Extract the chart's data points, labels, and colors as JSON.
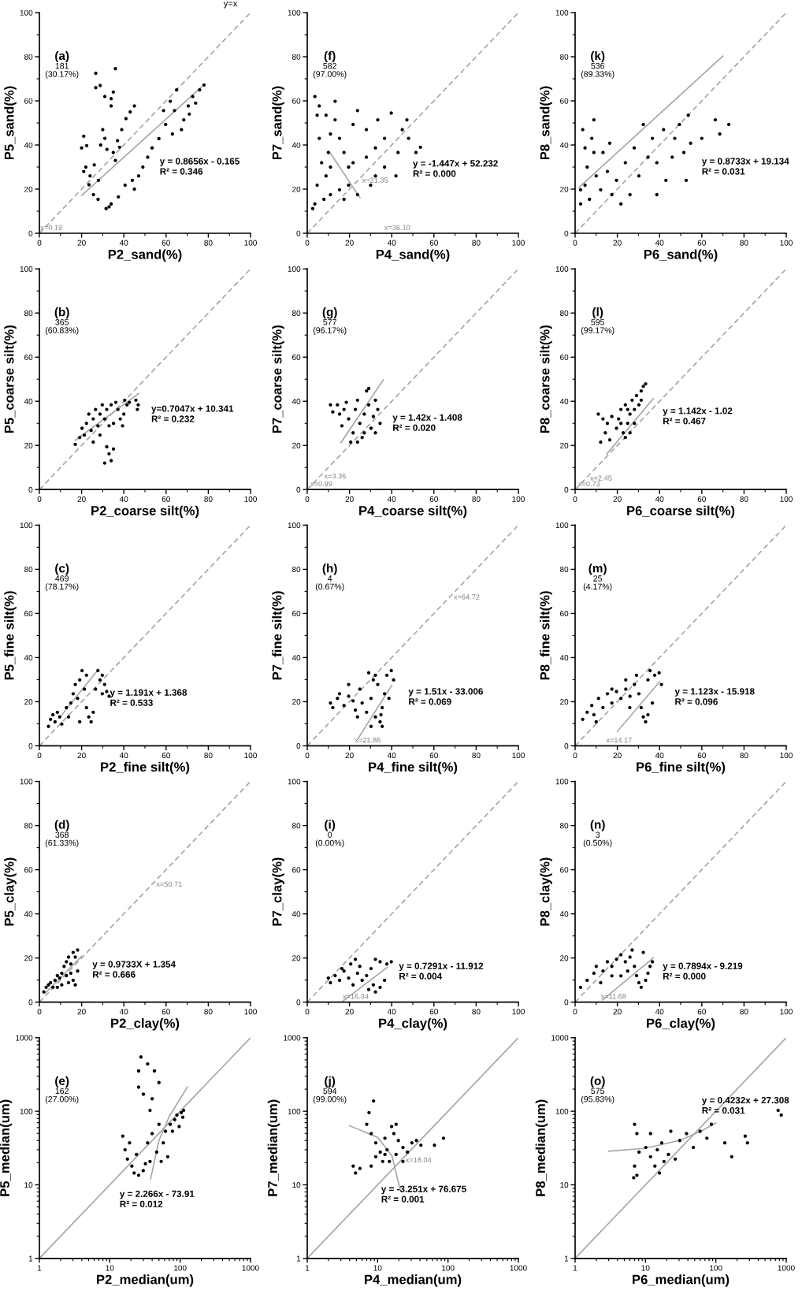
{
  "chart_data": [
    {
      "type": "scatter",
      "xlabel": "P2_sand(%)",
      "ylabel": "P5_sand(%)",
      "xlim": [
        0,
        100
      ],
      "ylim": [
        0,
        100
      ],
      "xticks": [
        0,
        20,
        40,
        60,
        80,
        100
      ],
      "yticks": [
        0,
        20,
        40,
        60,
        80,
        100
      ],
      "series": [
        {
          "color": "#000000",
          "marker": "circle",
          "x": [
            20,
            21,
            21,
            22.4,
            23.5,
            22,
            24,
            25.6,
            27.8,
            26,
            28,
            30,
            31,
            29,
            32,
            26.7,
            28.8,
            26.7,
            31,
            34,
            35,
            36,
            34,
            35,
            37,
            39,
            41,
            43,
            45,
            38,
            36,
            31.6,
            34,
            37.4,
            33,
            40.6,
            44,
            47,
            49,
            51.3,
            53.4,
            45,
            56.6,
            59.8,
            64,
            65,
            68.4,
            70.5,
            72.6,
            75.9,
            78,
            67.3,
            63,
            58.8,
            62,
            74,
            71
          ],
          "values": [
            38.7,
            44,
            28,
            39.7,
            22,
            30,
            26,
            17.5,
            15.4,
            31,
            24,
            47,
            43,
            40,
            38,
            72.5,
            67,
            66,
            62,
            61,
            64,
            74.6,
            57.7,
            36.6,
            42,
            47,
            52,
            55,
            57.7,
            39,
            33,
            11.2,
            13.3,
            16.5,
            12,
            21.8,
            24,
            26,
            30,
            34.5,
            38.7,
            20,
            42.9,
            49.3,
            55.6,
            65,
            51.4,
            57.7,
            62,
            65,
            67.2,
            47,
            45,
            55.6,
            59.8,
            59,
            54
          ]
        },
        {
          "type": "line",
          "color": "#a6a6a6",
          "line_style": "solid",
          "x": [
            20,
            78
          ],
          "values": [
            17.1,
            67.4
          ]
        },
        {
          "type": "line",
          "name": "y=x",
          "color": "#a6a6a6",
          "line_style": "dashed",
          "x": [
            0,
            100
          ],
          "values": [
            0,
            100
          ]
        }
      ],
      "annotations": [
        "(a)",
        "181",
        "(30.17%)",
        "y = 0.8656x - 0.165\nR² = 0.346",
        "x=0.19"
      ]
    },
    {
      "type": "scatter",
      "xlabel": "P4_sand(%)",
      "ylabel": "P7_sand(%)",
      "xlim": [
        0,
        100
      ],
      "ylim": [
        0,
        100
      ],
      "xticks": [
        0,
        20,
        40,
        60,
        80,
        100
      ],
      "yticks": [
        0,
        20,
        40,
        60,
        80,
        100
      ],
      "series": [
        {
          "color": "#000000",
          "marker": "circle",
          "x": [
            3.6,
            4.7,
            5.7,
            6.8,
            4.7,
            3.6,
            7.9,
            8.9,
            10,
            11,
            2.6,
            11,
            13.2,
            15.3,
            17.4,
            19.6,
            15.3,
            17.4,
            23.8,
            28,
            32.3,
            36.6,
            39.8,
            45,
            48,
            51.5,
            53.6,
            42,
            32.3,
            21.7,
            23.8,
            30,
            11,
            5.7,
            8.9,
            13.2,
            21.7,
            43,
            36.6,
            28,
            19.6,
            33.4,
            47.2
          ],
          "values": [
            62,
            53.5,
            43,
            32,
            21.8,
            13.3,
            15.4,
            26,
            36.6,
            45,
            11.2,
            17.5,
            51.4,
            43,
            36.6,
            30,
            19.7,
            15.4,
            55.6,
            47,
            38.7,
            30,
            54.5,
            47,
            43,
            36.6,
            39,
            26,
            26,
            32,
            17.5,
            21.8,
            30,
            57.7,
            53.5,
            59.8,
            49.3,
            36.6,
            43,
            34.5,
            21.8,
            51.4,
            51.4
          ]
        },
        {
          "type": "line",
          "color": "#a6a6a6",
          "line_style": "solid",
          "x": [
            11,
            25
          ],
          "values": [
            36.3,
            16.1
          ]
        },
        {
          "type": "line",
          "color": "#a6a6a6",
          "line_style": "dashed",
          "x": [
            0,
            100
          ],
          "values": [
            0,
            100
          ]
        }
      ],
      "annotations": [
        "(f)",
        "582",
        "(97.00%)",
        "y = -1.447x + 52.232\nR² = 0.000",
        "x=36.10",
        {
          "text": "x=21.35",
          "x": 21.35,
          "y": 21.35
        }
      ]
    },
    {
      "type": "scatter",
      "xlabel": "P6_sand(%)",
      "ylabel": "P8_sand(%)",
      "xlim": [
        0,
        100
      ],
      "ylim": [
        0,
        100
      ],
      "xticks": [
        0,
        20,
        40,
        60,
        80,
        100
      ],
      "yticks": [
        0,
        20,
        40,
        60,
        80,
        100
      ],
      "series": [
        {
          "color": "#000000",
          "marker": "circle",
          "x": [
            2.6,
            3.6,
            4.7,
            5.7,
            4.7,
            6.8,
            8.9,
            8.9,
            10,
            12.1,
            15.3,
            17.4,
            19.6,
            23.8,
            28,
            30.2,
            32.3,
            36.6,
            38.7,
            41.9,
            47.2,
            49.4,
            51.5,
            53.6,
            54.7,
            60,
            66.4,
            72.8,
            52.6,
            43,
            21.7,
            26,
            34.5,
            46,
            2.6,
            7.9,
            13.2,
            16.4,
            38.7,
            68.5
          ],
          "values": [
            13.3,
            47,
            38.7,
            30,
            21.8,
            15.4,
            51.4,
            36.6,
            26,
            19.7,
            28,
            17.5,
            24,
            32,
            38.7,
            26,
            49.3,
            43,
            32,
            47,
            43,
            49.3,
            36.6,
            53.5,
            40.8,
            43,
            51.4,
            49.3,
            24,
            24,
            13.3,
            17.5,
            34.5,
            34.5,
            19.7,
            43,
            36.6,
            40.8,
            17.5,
            45
          ]
        },
        {
          "type": "line",
          "color": "#a6a6a6",
          "line_style": "solid",
          "x": [
            2,
            70
          ],
          "values": [
            20.9,
            80.3
          ]
        },
        {
          "type": "line",
          "color": "#a6a6a6",
          "line_style": "dashed",
          "x": [
            0,
            100
          ],
          "values": [
            0,
            100
          ]
        }
      ],
      "annotations": [
        "(k)",
        "536",
        "(89.33%)",
        "y = 0.8733x + 19.134\nR² = 0.031"
      ]
    },
    {
      "type": "scatter",
      "xlabel": "P2_coarse silt(%)",
      "ylabel": "P5_coarse silt(%)",
      "xlim": [
        0,
        100
      ],
      "ylim": [
        0,
        100
      ],
      "xticks": [
        0,
        20,
        40,
        60,
        80,
        100
      ],
      "yticks": [
        0,
        20,
        40,
        60,
        80,
        100
      ],
      "series": [
        {
          "color": "#000000",
          "marker": "circle",
          "x": [
            17,
            19.1,
            20.2,
            22.3,
            23.4,
            25.5,
            26.6,
            28.7,
            29.8,
            31.9,
            34,
            36.2,
            37.2,
            38.3,
            35.1,
            33,
            30.9,
            27.7,
            24.5,
            21.3,
            28.7,
            25.5,
            31.9,
            33,
            34,
            30.9,
            35.1,
            40.4,
            41.5,
            40,
            39.4,
            45.7,
            46.8,
            46.4,
            42.6
          ],
          "values": [
            20.5,
            23.6,
            27.8,
            30,
            34.2,
            32,
            36.3,
            34.2,
            38.4,
            36.3,
            38.4,
            39.5,
            36.3,
            32,
            30,
            28.9,
            32,
            28.9,
            26.8,
            24.7,
            24.7,
            21.5,
            19.4,
            16.2,
            13.1,
            12,
            18.4,
            40.5,
            38.4,
            34.2,
            28.9,
            40.5,
            38.4,
            36.3,
            39.5
          ]
        },
        {
          "type": "line",
          "color": "#a6a6a6",
          "line_style": "solid",
          "x": [
            17,
            47
          ],
          "values": [
            22.3,
            43.5
          ]
        },
        {
          "type": "line",
          "color": "#a6a6a6",
          "line_style": "dashed",
          "x": [
            0,
            100
          ],
          "values": [
            0,
            100
          ]
        }
      ],
      "annotations": [
        "(b)",
        "365",
        "(60.83%)",
        "y=0.7047x + 10.341\nR² = 0.232"
      ]
    },
    {
      "type": "scatter",
      "xlabel": "P4_coarse silt(%)",
      "ylabel": "P7_coarse silt(%)",
      "xlim": [
        0,
        100
      ],
      "ylim": [
        0,
        100
      ],
      "xticks": [
        0,
        20,
        40,
        60,
        80,
        100
      ],
      "yticks": [
        0,
        20,
        40,
        60,
        80,
        100
      ],
      "series": [
        {
          "color": "#000000",
          "marker": "circle",
          "x": [
            14.3,
            15.3,
            16.4,
            18.5,
            19.6,
            21.7,
            22.8,
            23.8,
            24.9,
            26,
            27,
            28.1,
            29.1,
            30.2,
            31.3,
            32.3,
            33.4,
            34.5,
            20.6,
            17.4,
            11,
            12.1,
            23.8,
            27,
            29.1,
            32.3
          ],
          "values": [
            38.4,
            34.2,
            28.9,
            39.5,
            32,
            25.7,
            36.3,
            40.5,
            30,
            23.6,
            34.2,
            44.7,
            38.4,
            27.8,
            33.1,
            40.5,
            36.3,
            30,
            21.5,
            36.3,
            38.4,
            35.2,
            21.5,
            25.7,
            45.8,
            25.7
          ]
        },
        {
          "type": "line",
          "color": "#a6a6a6",
          "line_style": "solid",
          "x": [
            16,
            36
          ],
          "values": [
            21.3,
            49.7
          ]
        },
        {
          "type": "line",
          "color": "#a6a6a6",
          "line_style": "dashed",
          "x": [
            0,
            100
          ],
          "values": [
            0,
            100
          ]
        }
      ],
      "annotations": [
        "(g)",
        "577",
        "(96.17%)",
        "y = 1.42x - 1.408\nR² = 0.020",
        "x=0.99",
        {
          "text": "x=3.36",
          "x": 3.36,
          "y": 3.36
        }
      ]
    },
    {
      "type": "scatter",
      "xlabel": "P6_coarse silt(%)",
      "ylabel": "P8_coarse silt(%)",
      "xlim": [
        0,
        100
      ],
      "ylim": [
        0,
        100
      ],
      "xticks": [
        0,
        20,
        40,
        60,
        80,
        100
      ],
      "yticks": [
        0,
        20,
        40,
        60,
        80,
        100
      ],
      "series": [
        {
          "color": "#000000",
          "marker": "circle",
          "x": [
            12.1,
            14.3,
            15.3,
            17.4,
            19.6,
            20.6,
            21.7,
            22.8,
            23.8,
            24.9,
            26,
            27,
            28.1,
            29.1,
            30.2,
            31.3,
            32.3,
            33.4,
            31.3,
            23.8,
            21.7,
            16.4,
            13.2,
            11,
            26,
            28.1,
            24.9
          ],
          "values": [
            21.5,
            25.7,
            30,
            33.1,
            27.8,
            32,
            36.3,
            25.7,
            38.4,
            30,
            34.2,
            40.5,
            36.3,
            42.6,
            38.4,
            44.7,
            46.8,
            47.9,
            40.5,
            23.6,
            30,
            22.5,
            32,
            34.2,
            25.7,
            30,
            36.3
          ]
        },
        {
          "type": "line",
          "color": "#a6a6a6",
          "line_style": "solid",
          "x": [
            15,
            37
          ],
          "values": [
            16.1,
            41.2
          ]
        },
        {
          "type": "line",
          "color": "#a6a6a6",
          "line_style": "dashed",
          "x": [
            0,
            100
          ],
          "values": [
            0,
            100
          ]
        }
      ],
      "annotations": [
        "(l)",
        "595",
        "(99.17%)",
        "y = 1.142x - 1.02\nR² = 0.467",
        "x=0.73",
        {
          "text": "x=2.45",
          "x": 2.45,
          "y": 2.45
        }
      ]
    },
    {
      "type": "scatter",
      "xlabel": "P2_fine silt(%)",
      "ylabel": "P5_fine silt(%)",
      "xlim": [
        0,
        100
      ],
      "ylim": [
        0,
        100
      ],
      "xticks": [
        0,
        20,
        40,
        60,
        80,
        100
      ],
      "yticks": [
        0,
        20,
        40,
        60,
        80,
        100
      ],
      "series": [
        {
          "color": "#000000",
          "marker": "circle",
          "x": [
            4.3,
            5.3,
            6.4,
            7.4,
            8.5,
            9.6,
            10.6,
            12.8,
            13.8,
            14.9,
            16,
            17,
            18.1,
            19.1,
            20.2,
            21.3,
            22.3,
            23.4,
            24.5,
            19.1,
            25.5,
            22.3,
            27.7,
            28.7,
            29.8,
            30.9,
            31.9,
            33,
            29.8,
            26.6
          ],
          "values": [
            8.8,
            12,
            14.1,
            10.9,
            15.2,
            13.1,
            9.9,
            17.3,
            13.1,
            19.4,
            23.6,
            27.8,
            21.5,
            29.9,
            34.1,
            25.7,
            17.3,
            13.1,
            10.9,
            10.9,
            15.2,
            32,
            34.1,
            29.9,
            32,
            27.8,
            24.6,
            22.5,
            23.6,
            25.7
          ]
        },
        {
          "type": "line",
          "color": "#a6a6a6",
          "line_style": "solid",
          "x": [
            10,
            28
          ],
          "values": [
            13.3,
            34.7
          ]
        },
        {
          "type": "line",
          "color": "#a6a6a6",
          "line_style": "dashed",
          "x": [
            0,
            100
          ],
          "values": [
            0,
            100
          ]
        }
      ],
      "annotations": [
        "(c)",
        "469",
        "(78.17%)",
        "y = 1.191x + 1.368\nR² = 0.533"
      ]
    },
    {
      "type": "scatter",
      "xlabel": "P4_fine silt(%)",
      "ylabel": "P7_fine silt(%)",
      "xlim": [
        0,
        100
      ],
      "ylim": [
        0,
        100
      ],
      "xticks": [
        0,
        20,
        40,
        60,
        80,
        100
      ],
      "yticks": [
        0,
        20,
        40,
        60,
        80,
        100
      ],
      "series": [
        {
          "color": "#000000",
          "marker": "circle",
          "x": [
            11,
            12.1,
            14.3,
            15.3,
            17.4,
            19.6,
            21.7,
            22.8,
            24.9,
            26,
            28.1,
            30.2,
            31.3,
            32.3,
            33.4,
            32.3,
            34.5,
            35.5,
            36.6,
            37.7,
            39.8,
            40.9,
            38.7,
            35.5,
            30.2,
            23.8,
            19.6,
            29.1,
            34.9
          ],
          "values": [
            19.4,
            17.3,
            21.5,
            23.6,
            18.3,
            22.5,
            20.4,
            16.2,
            25.7,
            19.4,
            15.2,
            21.5,
            29.9,
            32,
            27.8,
            13.1,
            10.9,
            17.3,
            23.6,
            32,
            34.1,
            29.9,
            21.5,
            8.8,
            8.8,
            13.1,
            27.8,
            33.1,
            14.1
          ]
        },
        {
          "type": "line",
          "color": "#a6a6a6",
          "line_style": "solid",
          "x": [
            24,
            40
          ],
          "values": [
            3.2,
            27.4
          ]
        },
        {
          "type": "line",
          "color": "#a6a6a6",
          "line_style": "dashed",
          "x": [
            0,
            100
          ],
          "values": [
            0,
            100
          ]
        }
      ],
      "annotations": [
        "(h)",
        "4",
        "(0.67%)",
        "y = 1.51x - 33.006\nR² = 0.069",
        "x=21.86",
        {
          "text": "x=64.72",
          "x": 64.72,
          "y": 64.72
        }
      ]
    },
    {
      "type": "scatter",
      "xlabel": "P6_fine silt(%)",
      "ylabel": "P8_fine silt(%)",
      "xlim": [
        0,
        100
      ],
      "ylim": [
        0,
        100
      ],
      "xticks": [
        0,
        20,
        40,
        60,
        80,
        100
      ],
      "yticks": [
        0,
        20,
        40,
        60,
        80,
        100
      ],
      "series": [
        {
          "color": "#000000",
          "marker": "circle",
          "x": [
            3.6,
            5.7,
            7.9,
            8.9,
            11.1,
            13.2,
            15.3,
            17.4,
            19.6,
            21.7,
            24,
            26,
            28.1,
            29.1,
            30.2,
            31.3,
            32.3,
            33.4,
            34.5,
            35.5,
            37.7,
            39.8,
            40.9,
            36.6,
            34.5,
            17.4,
            24,
            25.9,
            10
          ],
          "values": [
            12,
            15.2,
            18.3,
            14.1,
            21.5,
            17.3,
            23.6,
            19.4,
            24.6,
            21.5,
            25.7,
            22.5,
            27.8,
            32,
            23.6,
            17.3,
            13.1,
            10.9,
            29.9,
            34.1,
            32,
            33.1,
            27.8,
            19.4,
            14.1,
            25.7,
            29.9,
            17.3,
            10.9
          ]
        },
        {
          "type": "line",
          "color": "#a6a6a6",
          "line_style": "solid",
          "x": [
            20,
            40
          ],
          "values": [
            6.5,
            29
          ]
        },
        {
          "type": "line",
          "color": "#a6a6a6",
          "line_style": "dashed",
          "x": [
            0,
            100
          ],
          "values": [
            0,
            100
          ]
        }
      ],
      "annotations": [
        "(m)",
        "25",
        "(4.17%)",
        "y = 1.123x - 15.918\nR² = 0.096",
        "x=14.17"
      ]
    },
    {
      "type": "scatter",
      "xlabel": "P2_clay(%)",
      "ylabel": "P5_clay(%)",
      "xlim": [
        0,
        100
      ],
      "ylim": [
        0,
        100
      ],
      "xticks": [
        0,
        20,
        40,
        60,
        80,
        100
      ],
      "yticks": [
        0,
        20,
        40,
        60,
        80,
        100
      ],
      "series": [
        {
          "color": "#000000",
          "marker": "circle",
          "x": [
            2.1,
            3.2,
            4.3,
            5.3,
            6.4,
            7.4,
            8.5,
            9.6,
            10.6,
            11.7,
            12.8,
            13.8,
            14.9,
            16,
            17,
            18.1,
            14.9,
            16,
            17,
            12.8,
            10.6,
            18.1,
            8.5,
            13.8
          ],
          "values": [
            4.6,
            6.7,
            7.8,
            8.8,
            6.7,
            9.9,
            12,
            10.9,
            13.1,
            16.2,
            18.3,
            20.4,
            17.3,
            22.5,
            20.4,
            23.6,
            13.1,
            9.9,
            7.8,
            12,
            7.8,
            14.1,
            6.7,
            8.8
          ]
        },
        {
          "type": "line",
          "color": "#a6a6a6",
          "line_style": "solid",
          "x": [
            3,
            20
          ],
          "values": [
            4.3,
            20.8
          ]
        },
        {
          "type": "line",
          "color": "#a6a6a6",
          "line_style": "dashed",
          "x": [
            0,
            100
          ],
          "values": [
            0,
            100
          ]
        }
      ],
      "annotations": [
        "(d)",
        "368",
        "(61.33%)",
        "y = 0.9733X + 1.354\nR² = 0.666",
        {
          "text": "x=50.71",
          "x": 50.71,
          "y": 50.71
        }
      ]
    },
    {
      "type": "scatter",
      "xlabel": "P4_clay(%)",
      "ylabel": "P7_clay(%)",
      "xlim": [
        0,
        100
      ],
      "ylim": [
        0,
        100
      ],
      "xticks": [
        0,
        20,
        40,
        60,
        80,
        100
      ],
      "yticks": [
        0,
        20,
        40,
        60,
        80,
        100
      ],
      "series": [
        {
          "color": "#000000",
          "marker": "circle",
          "x": [
            10,
            11,
            13.2,
            15.3,
            17.4,
            19.6,
            21.7,
            23.8,
            24.9,
            26,
            28.1,
            30.2,
            31.3,
            32.3,
            34.5,
            36.6,
            32.3,
            34.5,
            37.7,
            39.8,
            20.6,
            16.4,
            22.8,
            29.1
          ],
          "values": [
            10.9,
            8.8,
            12,
            9.9,
            14.1,
            10.9,
            7.8,
            13.1,
            16.2,
            9.9,
            12,
            15.2,
            7.8,
            4.6,
            6.7,
            9.9,
            19.4,
            18.3,
            17.3,
            18.3,
            17.3,
            15.2,
            19.4,
            5.7
          ]
        },
        {
          "type": "line",
          "color": "#a6a6a6",
          "line_style": "solid",
          "x": [
            17,
            38
          ],
          "values": [
            0.5,
            15.8
          ]
        },
        {
          "type": "line",
          "color": "#a6a6a6",
          "line_style": "dashed",
          "x": [
            0,
            100
          ],
          "values": [
            0,
            100
          ]
        }
      ],
      "annotations": [
        "(i)",
        "0",
        "(0.00%)",
        "y = 0.7291x - 11.912\nR² = 0.004",
        "x=16.34"
      ]
    },
    {
      "type": "scatter",
      "xlabel": "P6_clay(%)",
      "ylabel": "P8_clay(%)",
      "xlim": [
        0,
        100
      ],
      "ylim": [
        0,
        100
      ],
      "xticks": [
        0,
        20,
        40,
        60,
        80,
        100
      ],
      "yticks": [
        0,
        20,
        40,
        60,
        80,
        100
      ],
      "series": [
        {
          "color": "#000000",
          "marker": "circle",
          "x": [
            2.6,
            5.7,
            8.9,
            10,
            13.2,
            15.3,
            17.4,
            19.6,
            21.7,
            23.8,
            26,
            28.1,
            29.1,
            30.2,
            31.3,
            33.4,
            34.5,
            35.5,
            36.6,
            27,
            32.3,
            21.7,
            17.4,
            12.1,
            24.9
          ],
          "values": [
            6.7,
            9.9,
            13.1,
            16.2,
            14.1,
            18.3,
            16.2,
            19.4,
            21.5,
            18.3,
            20.4,
            16.2,
            12,
            8.8,
            6.7,
            9.9,
            13.1,
            16.2,
            18.3,
            23.6,
            22.5,
            11.9,
            11.9,
            8.8,
            14.1
          ]
        },
        {
          "type": "line",
          "color": "#a6a6a6",
          "line_style": "solid",
          "x": [
            13,
            37
          ],
          "values": [
            1,
            20
          ]
        },
        {
          "type": "line",
          "color": "#a6a6a6",
          "line_style": "dashed",
          "x": [
            0,
            100
          ],
          "values": [
            0,
            100
          ]
        }
      ],
      "annotations": [
        "(n)",
        "3",
        "(0.50%)",
        "y = 0.7894x - 9.219\nR² = 0.000",
        "x=11.68"
      ]
    },
    {
      "type": "scatter",
      "log": "xy",
      "xlabel": "P2_median(um)",
      "ylabel": "P5_median(um)",
      "xlim": [
        1,
        1000
      ],
      "ylim": [
        1,
        1000
      ],
      "xticks": [
        1,
        10,
        100,
        1000
      ],
      "yticks": [
        1,
        10,
        100,
        1000
      ],
      "series": [
        {
          "color": "#000000",
          "marker": "circle",
          "x": [
            27.7,
            34.5,
            25.7,
            43.1,
            50,
            25.7,
            30,
            40,
            37.3,
            15.3,
            16.5,
            17.8,
            20.6,
            22.2,
            25.7,
            29.9,
            19.1,
            23.9,
            34.5,
            40,
            46.4,
            53.8,
            57.7,
            62,
            50,
            66.6,
            37.3,
            32.1,
            72.3,
            83.7,
            90,
            104,
            112,
            77.6,
            96.9,
            109
          ],
          "values": [
            547,
            440,
            354,
            354,
            246,
            213,
            171,
            148,
            103,
            46,
            30,
            22.4,
            18,
            14.5,
            13.5,
            15.6,
            37.2,
            25.9,
            37.2,
            49.8,
            27.9,
            20.8,
            37.2,
            53.5,
            66.6,
            24.1,
            20.8,
            19.4,
            66.6,
            77,
            89,
            96,
            103,
            53.5,
            62,
            83
          ]
        },
        {
          "type": "line",
          "color": "#a6a6a6",
          "line_style": "solid",
          "x": [
            38,
            50,
            70,
            127
          ],
          "values": [
            12,
            40,
            85,
            214
          ]
        },
        {
          "type": "line",
          "color": "#a6a6a6",
          "line_style": "solid",
          "x": [
            1,
            1000
          ],
          "values": [
            1,
            1000
          ]
        }
      ],
      "annotations": [
        "(e)",
        "162",
        "(27.00%)",
        "y = 2.266x - 73.91\nR² = 0.012"
      ]
    },
    {
      "type": "scatter",
      "log": "xy",
      "xlabel": "P4_median(um)",
      "ylabel": "P7_median(um)",
      "xlim": [
        1,
        1000
      ],
      "ylim": [
        1,
        1000
      ],
      "xticks": [
        1,
        10,
        100,
        1000
      ],
      "yticks": [
        1,
        10,
        100,
        1000
      ],
      "series": [
        {
          "color": "#000000",
          "marker": "circle",
          "x": [
            7.55,
            7,
            8.1,
            9.4,
            10.9,
            12.7,
            11.8,
            9.4,
            8.1,
            4.5,
            4.85,
            5.6,
            8.75,
            17,
            18.3,
            19.7,
            22.9,
            26.5,
            30.7,
            35.6,
            41.2,
            64.2,
            86.3,
            22.9,
            18.3,
            14.7,
            13.6,
            15.8,
            12.7
          ],
          "values": [
            96,
            66.6,
            49.8,
            37.2,
            27.9,
            43,
            20.8,
            24.1,
            18,
            18,
            14.5,
            16.7,
            138,
            49.8,
            66.6,
            40,
            32.2,
            27.9,
            37.2,
            40,
            34.6,
            34.6,
            43,
            20.8,
            25.9,
            20.8,
            30,
            62,
            25.9
          ]
        },
        {
          "type": "line",
          "color": "#a6a6a6",
          "line_style": "solid",
          "x": [
            4,
            10,
            16,
            21
          ],
          "values": [
            63.7,
            44.2,
            24.7,
            8.4
          ]
        },
        {
          "type": "line",
          "color": "#a6a6a6",
          "line_style": "solid",
          "x": [
            1,
            1000
          ],
          "values": [
            1,
            1000
          ]
        }
      ],
      "annotations": [
        "(j)",
        "594",
        "(99.00%)",
        "y = -3.251x + 76.675\nR² = 0.001",
        {
          "text": "x=18.04",
          "x": 18.04,
          "y": 18.04
        }
      ]
    },
    {
      "type": "scatter",
      "log": "xy",
      "xlabel": "P6_median(um)",
      "ylabel": "P8_median(um)",
      "xlim": [
        1,
        1000
      ],
      "ylim": [
        1,
        1000
      ],
      "xticks": [
        1,
        10,
        100,
        1000
      ],
      "yticks": [
        1,
        10,
        100,
        1000
      ],
      "series": [
        {
          "color": "#000000",
          "marker": "circle",
          "x": [
            7,
            7.55,
            8.1,
            7,
            7.55,
            6.8,
            10.1,
            11.8,
            13.6,
            15.8,
            18.3,
            21.2,
            26.5,
            14.7,
            30.7,
            38.3,
            47.8,
            59.7,
            74.5,
            86.3,
            134,
            168,
            261,
            281,
            767,
            850,
            22.9,
            11.8,
            17
          ],
          "values": [
            66.6,
            49.8,
            27.9,
            18,
            13.5,
            12.5,
            32.2,
            24.1,
            18,
            14.5,
            20.8,
            25.9,
            22.4,
            30,
            40,
            49.8,
            32.2,
            53.5,
            43,
            66.6,
            37.2,
            24.1,
            46,
            37.2,
            103,
            89,
            53.5,
            49.8,
            37.2
          ]
        },
        {
          "type": "line",
          "color": "#a6a6a6",
          "line_style": "solid",
          "x": [
            3,
            10,
            30,
            60,
            100
          ],
          "values": [
            28.6,
            31.5,
            40,
            52.7,
            69.6
          ]
        },
        {
          "type": "line",
          "color": "#a6a6a6",
          "line_style": "solid",
          "x": [
            1,
            1000
          ],
          "values": [
            1,
            1000
          ]
        }
      ],
      "annotations": [
        "(o)",
        "575",
        "(95.83%)",
        "y = 0.4232x + 27.308\nR² = 0.031"
      ]
    }
  ]
}
